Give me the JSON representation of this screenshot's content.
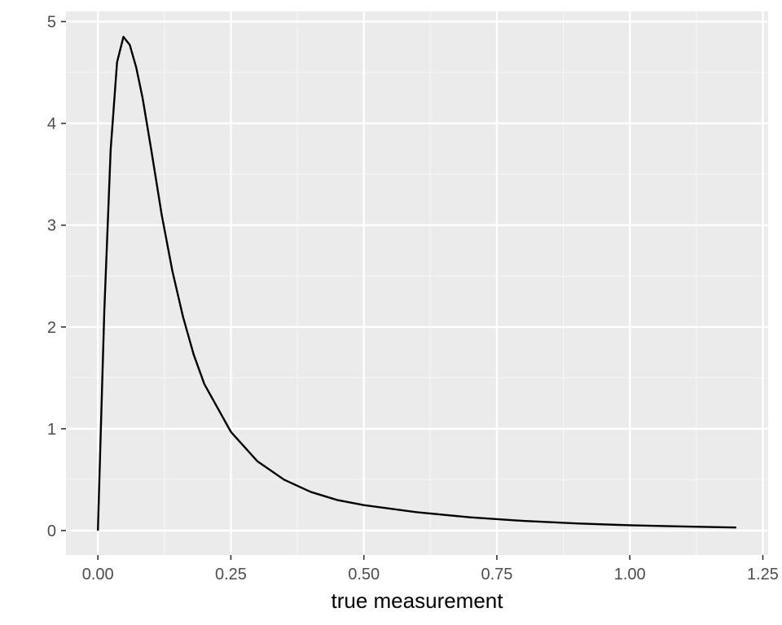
{
  "chart_data": {
    "type": "line",
    "title": "",
    "xlabel": "true measurement",
    "ylabel": "",
    "xlim": [
      -0.06,
      1.26
    ],
    "ylim": [
      -0.24,
      5.1
    ],
    "x_ticks": [
      0.0,
      0.25,
      0.5,
      0.75,
      1.0,
      1.25
    ],
    "x_tick_labels": [
      "0.00",
      "0.25",
      "0.50",
      "0.75",
      "1.00",
      "1.25"
    ],
    "y_ticks": [
      0,
      1,
      2,
      3,
      4,
      5
    ],
    "y_tick_labels": [
      "0",
      "1",
      "2",
      "3",
      "4",
      "5"
    ],
    "grid": true,
    "legend": "none",
    "series": [
      {
        "color": "#000000",
        "x": [
          0.0,
          0.012,
          0.024,
          0.036,
          0.048,
          0.06,
          0.072,
          0.084,
          0.1,
          0.12,
          0.14,
          0.16,
          0.18,
          0.2,
          0.25,
          0.3,
          0.35,
          0.4,
          0.45,
          0.5,
          0.6,
          0.7,
          0.8,
          0.9,
          1.0,
          1.1,
          1.2
        ],
        "y": [
          0.0,
          2.15,
          3.74,
          4.6,
          4.85,
          4.77,
          4.55,
          4.25,
          3.75,
          3.1,
          2.55,
          2.1,
          1.73,
          1.44,
          0.97,
          0.68,
          0.5,
          0.38,
          0.3,
          0.25,
          0.18,
          0.13,
          0.095,
          0.07,
          0.052,
          0.04,
          0.03
        ]
      }
    ]
  },
  "colors": {
    "panel_background": "#ebebeb",
    "grid_major": "#ffffff",
    "grid_minor": "#f5f5f5",
    "line": "#000000",
    "tick_text": "#4d4d4d",
    "axis_title": "#000000"
  }
}
